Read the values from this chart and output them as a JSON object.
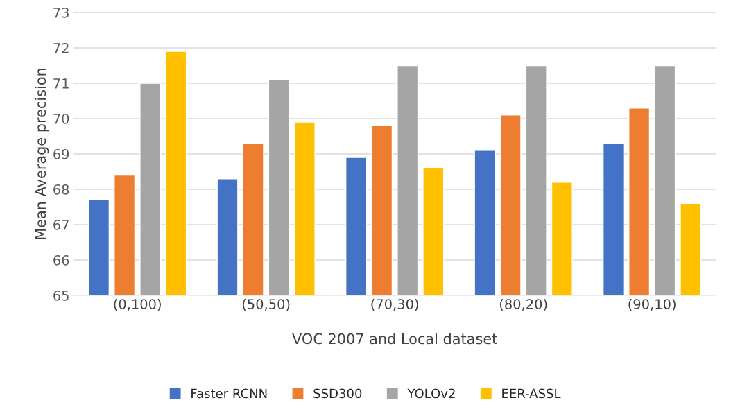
{
  "chart_data": {
    "type": "bar",
    "xlabel": "VOC 2007 and Local dataset",
    "ylabel": "Mean Average precision",
    "categories": [
      "(0,100)",
      "(50,50)",
      "(70,30)",
      "(80,20)",
      "(90,10)"
    ],
    "series": [
      {
        "name": "Faster RCNN",
        "color": "#4472c4",
        "values": [
          67.7,
          68.3,
          68.9,
          69.1,
          69.3
        ]
      },
      {
        "name": "SSD300",
        "color": "#ed7d31",
        "values": [
          68.4,
          69.3,
          69.8,
          70.1,
          70.3
        ]
      },
      {
        "name": "YOLOv2",
        "color": "#a5a5a5",
        "values": [
          71.0,
          71.1,
          71.5,
          71.5,
          71.5
        ]
      },
      {
        "name": "EER-ASSL",
        "color": "#ffc000",
        "values": [
          71.9,
          69.9,
          68.6,
          68.2,
          67.6
        ]
      }
    ],
    "ylim": [
      65,
      73
    ],
    "yticks": [
      65,
      66,
      67,
      68,
      69,
      70,
      71,
      72,
      73
    ],
    "grid": "y",
    "legend": "bottom"
  }
}
